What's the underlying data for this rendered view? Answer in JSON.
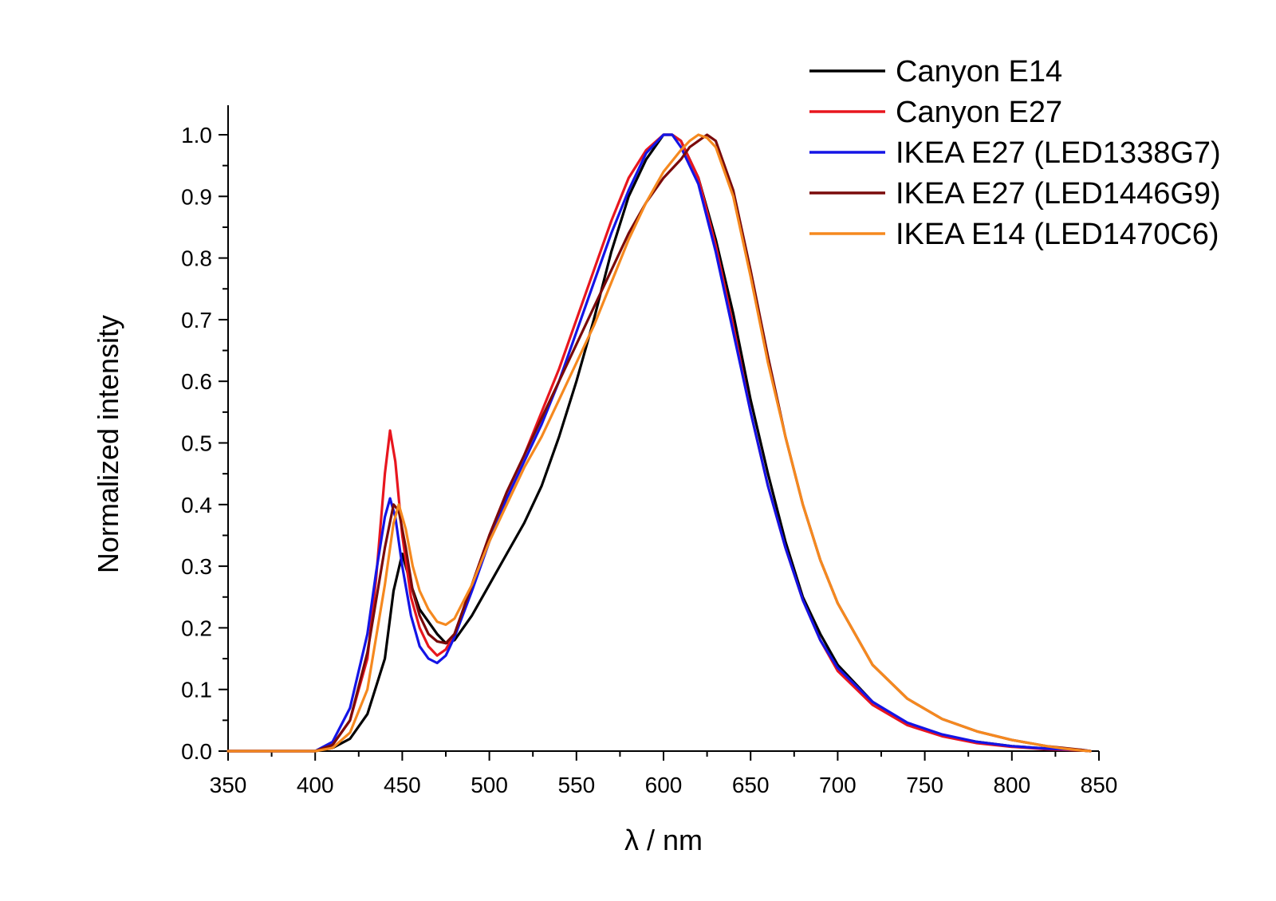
{
  "chart_data": {
    "type": "line",
    "title": "",
    "xlabel": "λ / nm",
    "ylabel": "Normalized intensity",
    "xlim": [
      350,
      850
    ],
    "ylim": [
      0.0,
      1.05
    ],
    "xticks": [
      350,
      400,
      450,
      500,
      550,
      600,
      650,
      700,
      750,
      800,
      850
    ],
    "xtick_labels": [
      "350",
      "400",
      "450",
      "500",
      "550",
      "600",
      "650",
      "700",
      "750",
      "800",
      "850"
    ],
    "yticks": [
      0.0,
      0.1,
      0.2,
      0.3,
      0.4,
      0.5,
      0.6,
      0.7,
      0.8,
      0.9,
      1.0
    ],
    "ytick_labels": [
      "0.0",
      "0.1",
      "0.2",
      "0.3",
      "0.4",
      "0.5",
      "0.6",
      "0.7",
      "0.8",
      "0.9",
      "1.0"
    ],
    "grid": false,
    "legend_position": "top-right",
    "series": [
      {
        "name": "Canyon E14",
        "color": "#000000",
        "x": [
          350,
          400,
          410,
          420,
          430,
          440,
          445,
          450,
          455,
          460,
          465,
          470,
          475,
          480,
          490,
          500,
          510,
          520,
          530,
          540,
          550,
          560,
          570,
          580,
          590,
          600,
          605,
          610,
          620,
          630,
          640,
          650,
          660,
          670,
          680,
          690,
          700,
          720,
          740,
          760,
          780,
          800,
          820,
          840,
          845
        ],
        "values": [
          0.0,
          0.0,
          0.005,
          0.02,
          0.06,
          0.15,
          0.26,
          0.32,
          0.27,
          0.23,
          0.21,
          0.19,
          0.175,
          0.18,
          0.22,
          0.27,
          0.32,
          0.37,
          0.43,
          0.51,
          0.6,
          0.7,
          0.81,
          0.9,
          0.96,
          1.0,
          1.0,
          0.99,
          0.93,
          0.83,
          0.71,
          0.57,
          0.45,
          0.34,
          0.25,
          0.19,
          0.14,
          0.08,
          0.045,
          0.026,
          0.015,
          0.008,
          0.004,
          0.001,
          0.0
        ]
      },
      {
        "name": "Canyon E27",
        "color": "#e8161e",
        "x": [
          350,
          400,
          410,
          420,
          430,
          435,
          440,
          443,
          446,
          450,
          455,
          460,
          465,
          470,
          475,
          480,
          490,
          500,
          510,
          520,
          530,
          540,
          550,
          560,
          570,
          580,
          590,
          600,
          605,
          610,
          620,
          630,
          640,
          650,
          660,
          670,
          680,
          690,
          700,
          720,
          740,
          760,
          780,
          800,
          820,
          840,
          845
        ],
        "values": [
          0.0,
          0.0,
          0.01,
          0.05,
          0.15,
          0.28,
          0.45,
          0.52,
          0.47,
          0.35,
          0.25,
          0.2,
          0.17,
          0.155,
          0.165,
          0.19,
          0.27,
          0.35,
          0.42,
          0.48,
          0.55,
          0.62,
          0.7,
          0.78,
          0.86,
          0.93,
          0.975,
          1.0,
          1.0,
          0.99,
          0.93,
          0.82,
          0.69,
          0.55,
          0.43,
          0.33,
          0.245,
          0.18,
          0.13,
          0.075,
          0.042,
          0.024,
          0.013,
          0.007,
          0.003,
          0.001,
          0.0
        ]
      },
      {
        "name": "IKEA E27 (LED1338G7)",
        "color": "#1414e6",
        "x": [
          350,
          400,
          410,
          420,
          430,
          435,
          440,
          443,
          446,
          450,
          455,
          460,
          465,
          470,
          475,
          480,
          490,
          500,
          510,
          520,
          530,
          540,
          550,
          560,
          570,
          580,
          590,
          600,
          605,
          610,
          620,
          630,
          640,
          650,
          660,
          670,
          680,
          690,
          700,
          720,
          740,
          760,
          780,
          800,
          820,
          840,
          845
        ],
        "values": [
          0.0,
          0.0,
          0.015,
          0.07,
          0.19,
          0.29,
          0.38,
          0.41,
          0.38,
          0.3,
          0.22,
          0.17,
          0.15,
          0.143,
          0.155,
          0.185,
          0.26,
          0.34,
          0.41,
          0.47,
          0.53,
          0.6,
          0.68,
          0.76,
          0.84,
          0.91,
          0.97,
          1.0,
          1.0,
          0.98,
          0.92,
          0.81,
          0.68,
          0.55,
          0.43,
          0.33,
          0.245,
          0.18,
          0.135,
          0.08,
          0.046,
          0.027,
          0.015,
          0.008,
          0.004,
          0.002,
          0.0
        ]
      },
      {
        "name": "IKEA E27 (LED1446G9)",
        "color": "#7a0a0a",
        "x": [
          350,
          400,
          410,
          420,
          430,
          440,
          445,
          448,
          452,
          456,
          460,
          465,
          470,
          475,
          480,
          490,
          500,
          510,
          520,
          530,
          540,
          550,
          560,
          570,
          580,
          590,
          600,
          610,
          615,
          620,
          625,
          630,
          640,
          650,
          660,
          670,
          680,
          690,
          700,
          720,
          740,
          760,
          780,
          800,
          820,
          840,
          845
        ],
        "values": [
          0.0,
          0.0,
          0.01,
          0.05,
          0.16,
          0.33,
          0.4,
          0.39,
          0.33,
          0.26,
          0.22,
          0.19,
          0.178,
          0.175,
          0.19,
          0.27,
          0.35,
          0.42,
          0.48,
          0.54,
          0.6,
          0.66,
          0.72,
          0.78,
          0.84,
          0.89,
          0.93,
          0.96,
          0.98,
          0.99,
          1.0,
          0.99,
          0.91,
          0.78,
          0.64,
          0.51,
          0.4,
          0.31,
          0.24,
          0.14,
          0.085,
          0.052,
          0.032,
          0.018,
          0.008,
          0.002,
          0.0
        ]
      },
      {
        "name": "IKEA E14 (LED1470C6)",
        "color": "#f5891f",
        "x": [
          350,
          400,
          410,
          420,
          430,
          440,
          445,
          448,
          452,
          456,
          460,
          465,
          470,
          475,
          480,
          490,
          500,
          510,
          520,
          530,
          540,
          550,
          560,
          570,
          580,
          590,
          600,
          610,
          615,
          620,
          625,
          630,
          640,
          650,
          660,
          670,
          680,
          690,
          700,
          720,
          740,
          760,
          780,
          800,
          820,
          830,
          840,
          845
        ],
        "values": [
          0.0,
          0.0,
          0.005,
          0.03,
          0.1,
          0.27,
          0.37,
          0.4,
          0.36,
          0.3,
          0.26,
          0.23,
          0.21,
          0.205,
          0.215,
          0.27,
          0.34,
          0.4,
          0.46,
          0.51,
          0.57,
          0.63,
          0.69,
          0.76,
          0.83,
          0.89,
          0.94,
          0.975,
          0.99,
          1.0,
          0.995,
          0.98,
          0.9,
          0.77,
          0.63,
          0.51,
          0.4,
          0.31,
          0.24,
          0.14,
          0.085,
          0.052,
          0.032,
          0.018,
          0.008,
          0.004,
          0.001,
          0.0
        ]
      }
    ]
  }
}
